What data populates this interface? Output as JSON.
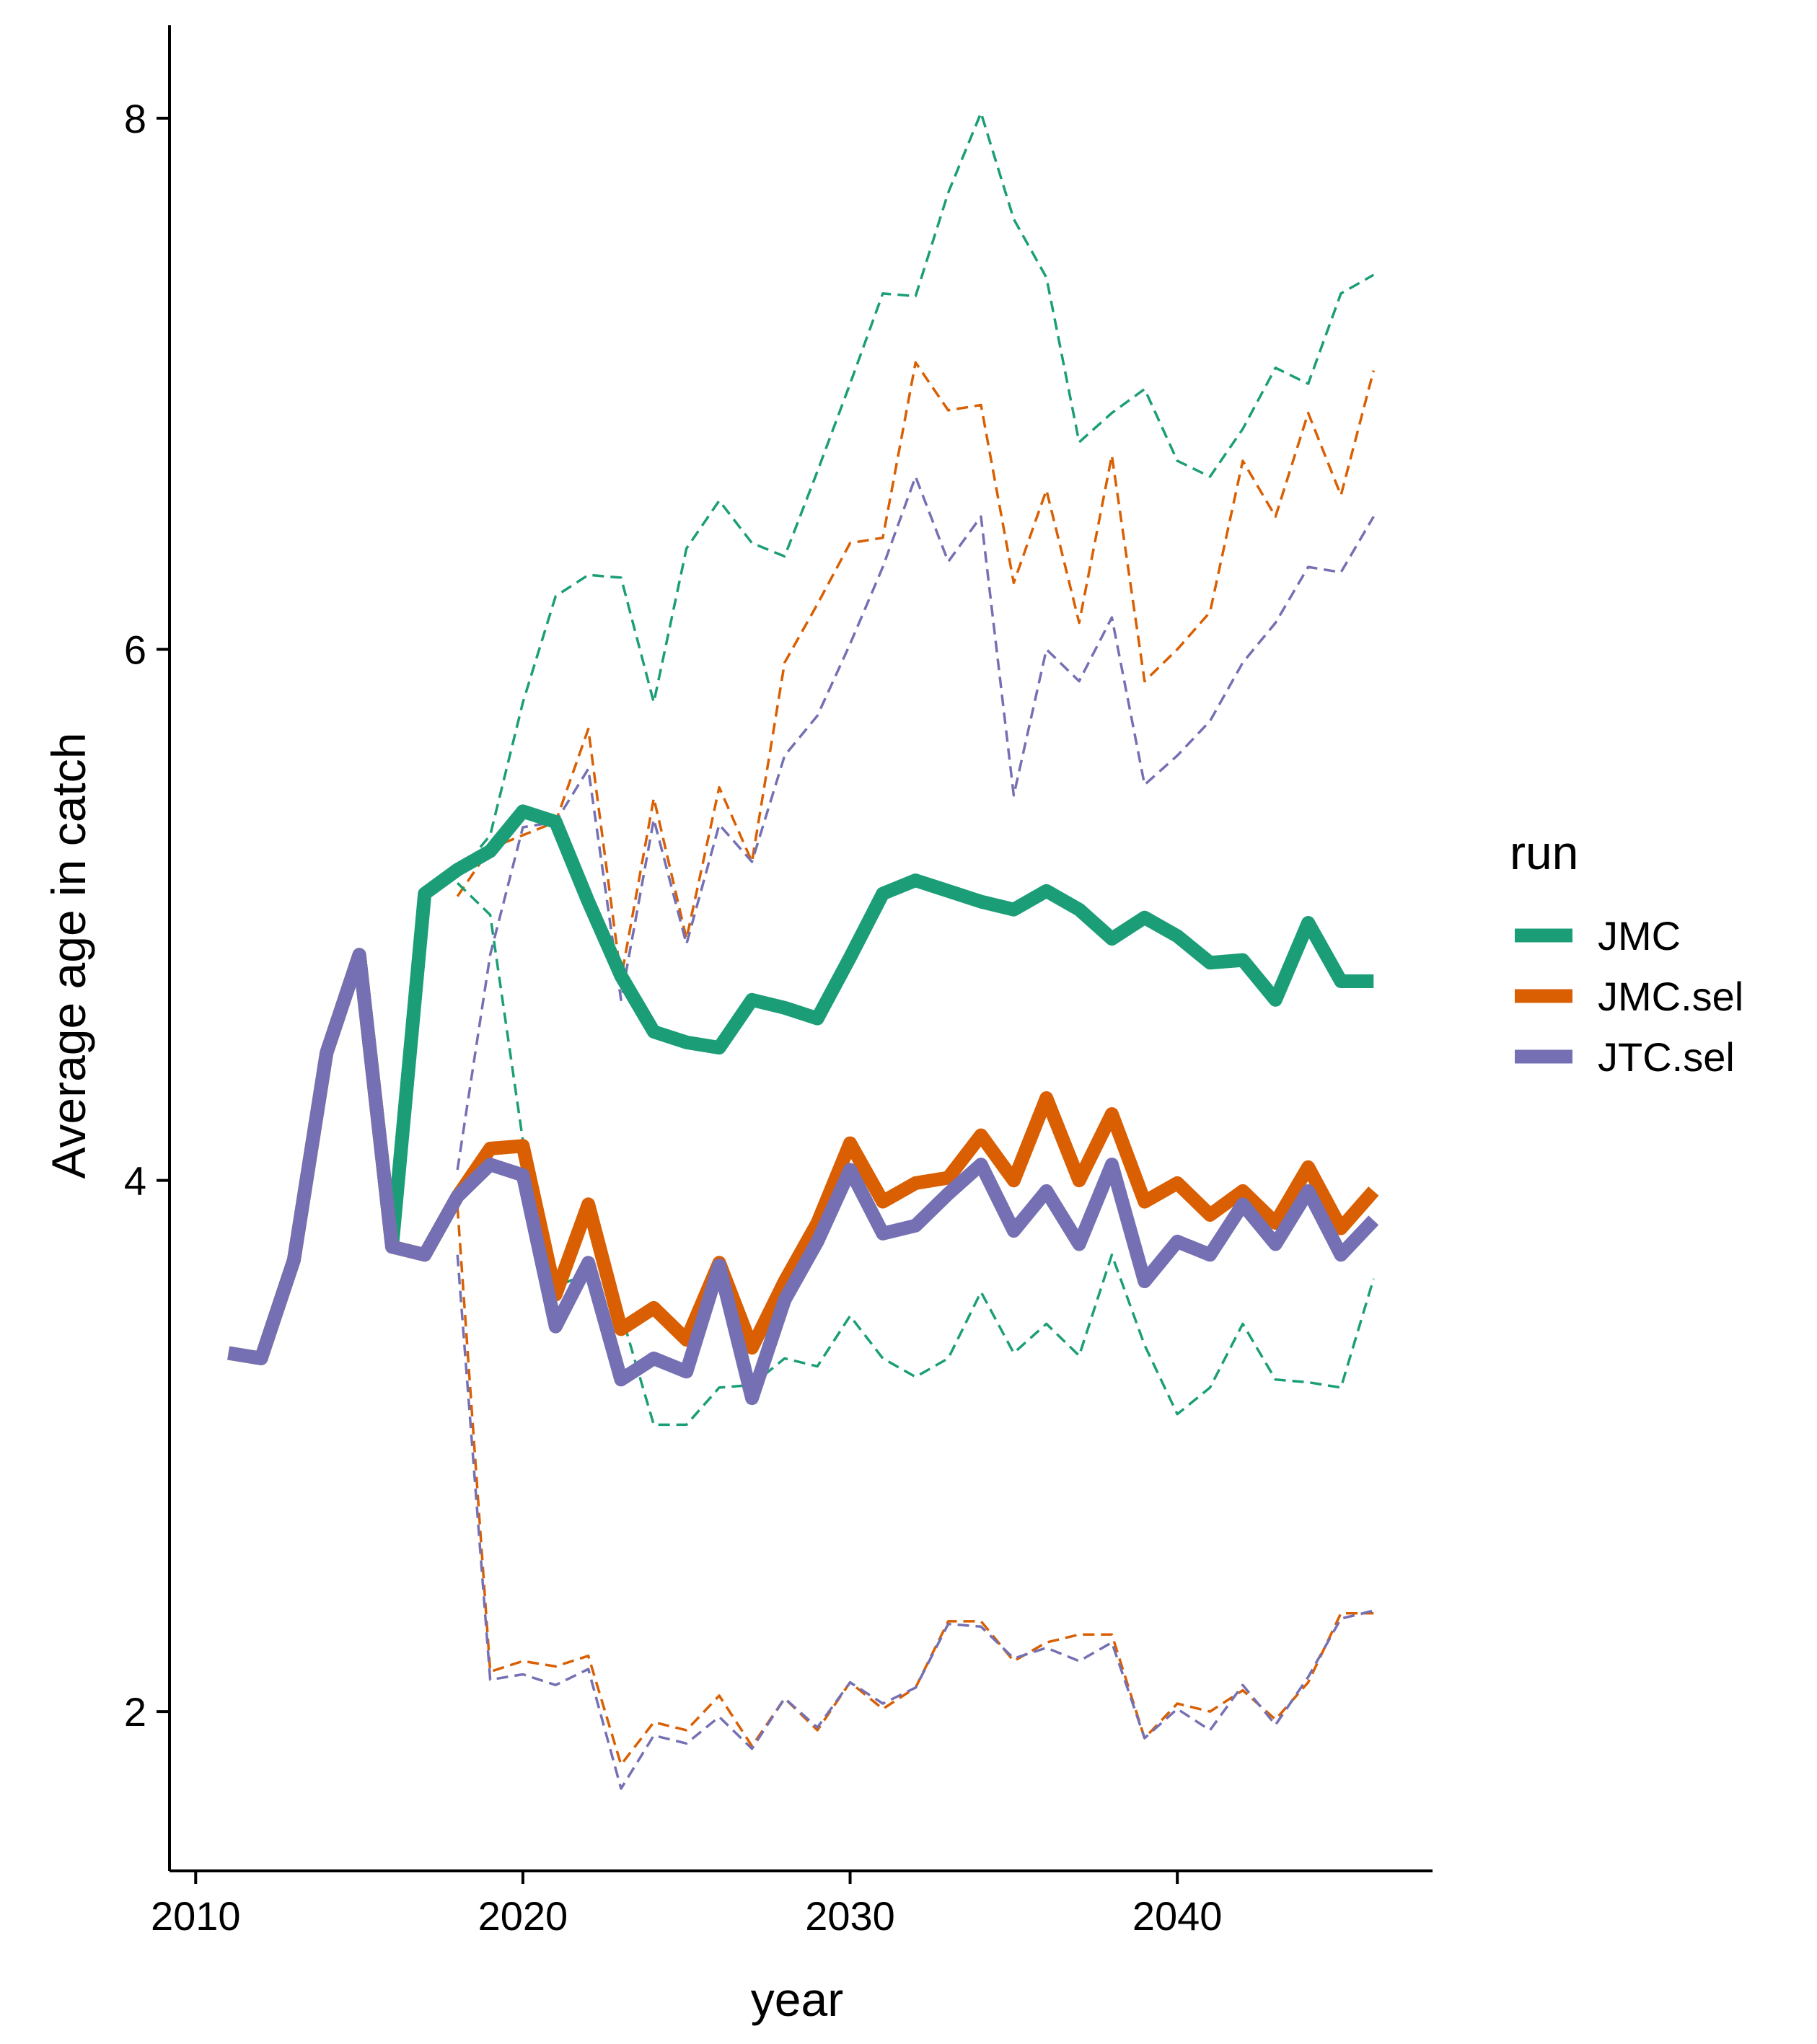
{
  "chart_data": {
    "type": "line",
    "xlabel": "year",
    "ylabel": "Average age in catch",
    "xlim": [
      2009.2,
      2047.8
    ],
    "ylim": [
      1.4,
      8.35
    ],
    "x_ticks": [
      2010,
      2020,
      2030,
      2040
    ],
    "y_ticks": [
      2,
      4,
      6,
      8
    ],
    "grid": false,
    "legend": {
      "title": "run",
      "position": "right",
      "entries": [
        {
          "label": "JMC",
          "color": "#1b9e77"
        },
        {
          "label": "JMC.sel",
          "color": "#d95f02"
        },
        {
          "label": "JTC.sel",
          "color": "#7570b3"
        }
      ]
    },
    "series": [
      {
        "name": "JMC",
        "color": "#1b9e77",
        "style": "solid",
        "x": [
          2011,
          2012,
          2013,
          2014,
          2015,
          2016,
          2017,
          2018,
          2019,
          2020,
          2021,
          2022,
          2023,
          2024,
          2025,
          2026,
          2027,
          2028,
          2029,
          2030,
          2031,
          2032,
          2033,
          2034,
          2035,
          2036,
          2037,
          2038,
          2039,
          2040,
          2041,
          2042,
          2043,
          2044,
          2045,
          2046
        ],
        "y": [
          3.35,
          3.33,
          3.7,
          4.48,
          4.85,
          3.75,
          5.08,
          5.17,
          5.24,
          5.39,
          5.35,
          5.05,
          4.77,
          4.56,
          4.52,
          4.5,
          4.68,
          4.65,
          4.61,
          4.84,
          5.08,
          5.13,
          5.09,
          5.05,
          5.02,
          5.09,
          5.02,
          4.91,
          4.99,
          4.92,
          4.82,
          4.83,
          4.68,
          4.97,
          4.75,
          4.75
        ]
      },
      {
        "name": "JMC.sel",
        "color": "#d95f02",
        "style": "solid",
        "x": [
          2011,
          2012,
          2013,
          2014,
          2015,
          2016,
          2017,
          2018,
          2019,
          2020,
          2021,
          2022,
          2023,
          2024,
          2025,
          2026,
          2027,
          2028,
          2029,
          2030,
          2031,
          2032,
          2033,
          2034,
          2035,
          2036,
          2037,
          2038,
          2039,
          2040,
          2041,
          2042,
          2043,
          2044,
          2045,
          2046
        ],
        "y": [
          3.35,
          3.33,
          3.7,
          4.48,
          4.85,
          3.75,
          3.72,
          3.94,
          4.12,
          4.13,
          3.57,
          3.91,
          3.44,
          3.52,
          3.4,
          3.69,
          3.37,
          3.62,
          3.84,
          4.14,
          3.92,
          3.99,
          4.01,
          4.17,
          4.0,
          4.31,
          4.0,
          4.25,
          3.92,
          3.99,
          3.87,
          3.96,
          3.84,
          4.05,
          3.82,
          3.96
        ]
      },
      {
        "name": "JTC.sel",
        "color": "#7570b3",
        "style": "solid",
        "x": [
          2011,
          2012,
          2013,
          2014,
          2015,
          2016,
          2017,
          2018,
          2019,
          2020,
          2021,
          2022,
          2023,
          2024,
          2025,
          2026,
          2027,
          2028,
          2029,
          2030,
          2031,
          2032,
          2033,
          2034,
          2035,
          2036,
          2037,
          2038,
          2039,
          2040,
          2041,
          2042,
          2043,
          2044,
          2045,
          2046
        ],
        "y": [
          3.35,
          3.33,
          3.7,
          4.48,
          4.85,
          3.75,
          3.72,
          3.94,
          4.06,
          4.02,
          3.45,
          3.69,
          3.25,
          3.33,
          3.28,
          3.68,
          3.18,
          3.55,
          3.77,
          4.04,
          3.8,
          3.83,
          3.95,
          4.06,
          3.81,
          3.96,
          3.76,
          4.06,
          3.62,
          3.77,
          3.72,
          3.91,
          3.76,
          3.96,
          3.72,
          3.85
        ]
      },
      {
        "name": "",
        "color": "#1b9e77",
        "style": "dashed",
        "x": [
          2018,
          2019,
          2020,
          2021,
          2022,
          2023,
          2024,
          2025,
          2026,
          2027,
          2028,
          2029,
          2030,
          2031,
          2032,
          2033,
          2034,
          2035,
          2036,
          2037,
          2038,
          2039,
          2040,
          2041,
          2042,
          2043,
          2044,
          2045,
          2046
        ],
        "y": [
          5.15,
          5.3,
          5.8,
          6.2,
          6.28,
          6.27,
          5.8,
          6.38,
          6.56,
          6.4,
          6.35,
          6.67,
          7.0,
          7.34,
          7.33,
          7.72,
          8.02,
          7.62,
          7.4,
          6.78,
          6.89,
          6.98,
          6.71,
          6.65,
          6.83,
          7.06,
          7.0,
          7.34,
          7.41
        ]
      },
      {
        "name": "",
        "color": "#d95f02",
        "style": "dashed",
        "x": [
          2018,
          2019,
          2020,
          2021,
          2022,
          2023,
          2024,
          2025,
          2026,
          2027,
          2028,
          2029,
          2030,
          2031,
          2032,
          2033,
          2034,
          2035,
          2036,
          2037,
          2038,
          2039,
          2040,
          2041,
          2042,
          2043,
          2044,
          2045,
          2046
        ],
        "y": [
          5.07,
          5.25,
          5.3,
          5.35,
          5.7,
          4.76,
          5.44,
          4.91,
          5.48,
          5.2,
          5.95,
          6.17,
          6.4,
          6.42,
          7.08,
          6.9,
          6.92,
          6.25,
          6.6,
          6.1,
          6.73,
          5.88,
          6.0,
          6.14,
          6.71,
          6.5,
          6.89,
          6.58,
          7.05
        ]
      },
      {
        "name": "",
        "color": "#7570b3",
        "style": "dashed",
        "x": [
          2018,
          2019,
          2020,
          2021,
          2022,
          2023,
          2024,
          2025,
          2026,
          2027,
          2028,
          2029,
          2030,
          2031,
          2032,
          2033,
          2034,
          2035,
          2036,
          2037,
          2038,
          2039,
          2040,
          2041,
          2042,
          2043,
          2044,
          2045,
          2046
        ],
        "y": [
          4.04,
          4.85,
          5.33,
          5.35,
          5.55,
          4.68,
          5.36,
          4.89,
          5.34,
          5.2,
          5.6,
          5.75,
          6.02,
          6.31,
          6.65,
          6.33,
          6.5,
          5.45,
          6.0,
          5.88,
          6.12,
          5.49,
          5.6,
          5.73,
          5.95,
          6.1,
          6.31,
          6.29,
          6.5
        ]
      },
      {
        "name": "",
        "color": "#1b9e77",
        "style": "dashed",
        "x": [
          2018,
          2019,
          2020,
          2021,
          2022,
          2023,
          2024,
          2025,
          2026,
          2027,
          2028,
          2029,
          2030,
          2031,
          2032,
          2033,
          2034,
          2035,
          2036,
          2037,
          2038,
          2039,
          2040,
          2041,
          2042,
          2043,
          2044,
          2045,
          2046
        ],
        "y": [
          5.12,
          5.0,
          4.15,
          3.6,
          3.65,
          3.5,
          3.08,
          3.08,
          3.22,
          3.23,
          3.33,
          3.3,
          3.49,
          3.33,
          3.26,
          3.33,
          3.58,
          3.35,
          3.46,
          3.34,
          3.72,
          3.38,
          3.12,
          3.22,
          3.46,
          3.25,
          3.24,
          3.22,
          3.63
        ]
      },
      {
        "name": "",
        "color": "#d95f02",
        "style": "dashed",
        "x": [
          2018,
          2019,
          2020,
          2021,
          2022,
          2023,
          2024,
          2025,
          2026,
          2027,
          2028,
          2029,
          2030,
          2031,
          2032,
          2033,
          2034,
          2035,
          2036,
          2037,
          2038,
          2039,
          2040,
          2041,
          2042,
          2043,
          2044,
          2045,
          2046
        ],
        "y": [
          3.9,
          2.15,
          2.19,
          2.17,
          2.21,
          1.8,
          1.96,
          1.93,
          2.06,
          1.87,
          2.05,
          1.93,
          2.11,
          2.01,
          2.09,
          2.34,
          2.34,
          2.19,
          2.26,
          2.29,
          2.29,
          1.9,
          2.03,
          2.0,
          2.08,
          1.97,
          2.11,
          2.37,
          2.37
        ]
      },
      {
        "name": "",
        "color": "#7570b3",
        "style": "dashed",
        "x": [
          2018,
          2019,
          2020,
          2021,
          2022,
          2023,
          2024,
          2025,
          2026,
          2027,
          2028,
          2029,
          2030,
          2031,
          2032,
          2033,
          2034,
          2035,
          2036,
          2037,
          2038,
          2039,
          2040,
          2041,
          2042,
          2043,
          2044,
          2045,
          2046
        ],
        "y": [
          3.72,
          2.12,
          2.14,
          2.1,
          2.16,
          1.71,
          1.91,
          1.88,
          1.98,
          1.86,
          2.05,
          1.94,
          2.11,
          2.03,
          2.09,
          2.33,
          2.32,
          2.2,
          2.24,
          2.19,
          2.26,
          1.9,
          2.01,
          1.93,
          2.1,
          1.95,
          2.13,
          2.35,
          2.38
        ]
      }
    ]
  }
}
